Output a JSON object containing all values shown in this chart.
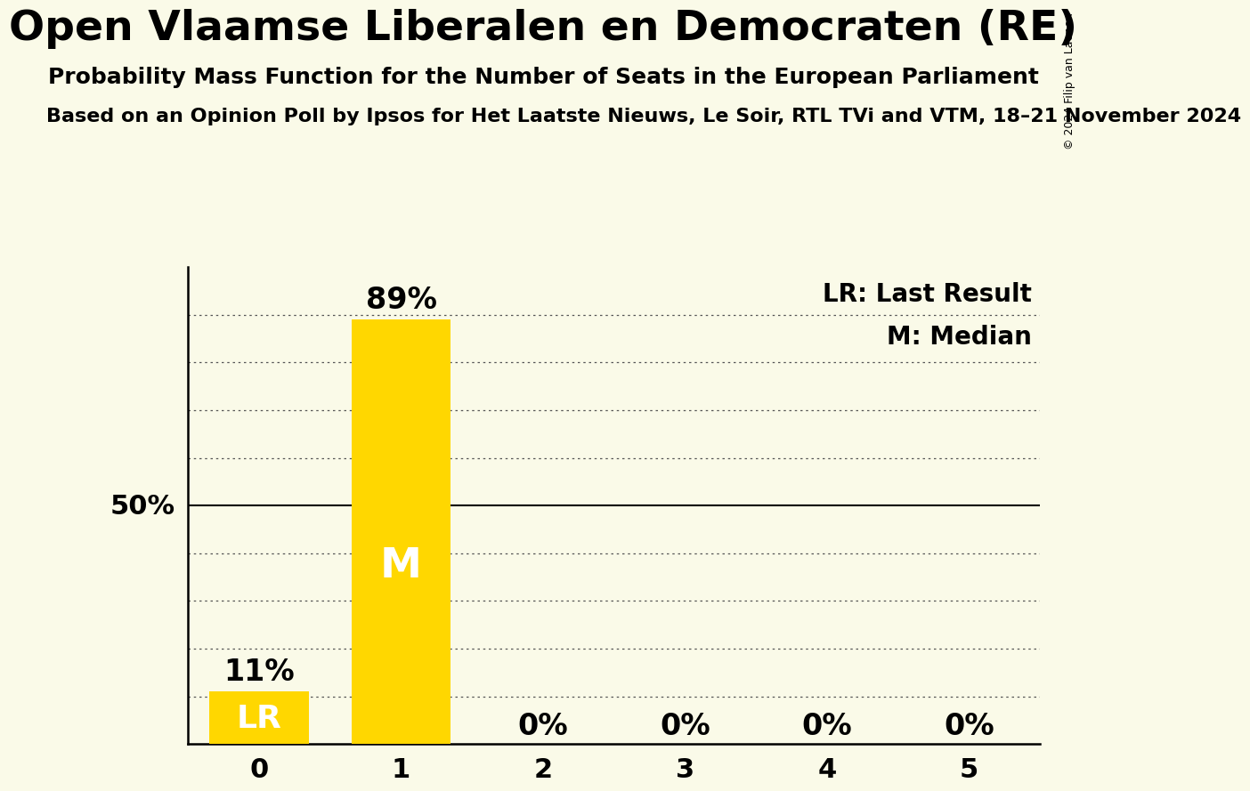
{
  "title": "Open Vlaamse Liberalen en Democraten (RE)",
  "subtitle": "Probability Mass Function for the Number of Seats in the European Parliament",
  "source_line": "Based on an Opinion Poll by Ipsos for Het Laatste Nieuws, Le Soir, RTL TVi and VTM, 18–21 November 2024",
  "copyright": "© 2024 Filip van Laenen",
  "seats": [
    0,
    1,
    2,
    3,
    4,
    5
  ],
  "probabilities": [
    0.11,
    0.89,
    0.0,
    0.0,
    0.0,
    0.0
  ],
  "bar_color": "#FFD700",
  "background_color": "#FAFAE8",
  "last_result_seat": 0,
  "median_seat": 1,
  "ylabel_50": "50%",
  "legend_lr": "LR: Last Result",
  "legend_m": "M: Median",
  "xlim": [
    -0.5,
    5.5
  ],
  "ylim": [
    0.0,
    1.0
  ],
  "bar_width": 0.7,
  "title_fontsize": 34,
  "subtitle_fontsize": 18,
  "source_fontsize": 16,
  "tick_fontsize": 22,
  "label_fontsize": 22,
  "pct_label_fontsize": 24,
  "bar_text_fontsize_lr": 26,
  "bar_text_fontsize_m": 34,
  "legend_fontsize": 20,
  "copyright_fontsize": 9
}
